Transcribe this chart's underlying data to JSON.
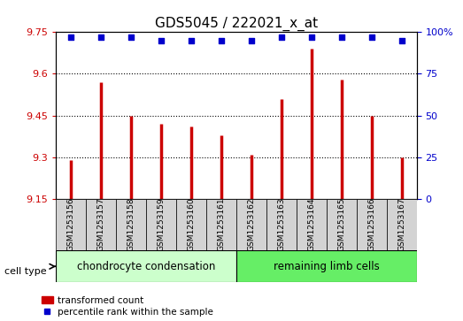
{
  "title": "GDS5045 / 222021_x_at",
  "samples": [
    "GSM1253156",
    "GSM1253157",
    "GSM1253158",
    "GSM1253159",
    "GSM1253160",
    "GSM1253161",
    "GSM1253162",
    "GSM1253163",
    "GSM1253164",
    "GSM1253165",
    "GSM1253166",
    "GSM1253167"
  ],
  "transformed_counts": [
    9.29,
    9.57,
    9.45,
    9.42,
    9.41,
    9.38,
    9.31,
    9.51,
    9.69,
    9.58,
    9.45,
    9.3
  ],
  "percentile_ranks": [
    97,
    97,
    97,
    95,
    95,
    95,
    95,
    97,
    97,
    97,
    97,
    95
  ],
  "ylim_left": [
    9.15,
    9.75
  ],
  "ylim_right": [
    0,
    100
  ],
  "yticks_left": [
    9.15,
    9.3,
    9.45,
    9.6,
    9.75
  ],
  "yticks_right": [
    0,
    25,
    50,
    75,
    100
  ],
  "ytick_labels_left": [
    "9.15",
    "9.3",
    "9.45",
    "9.6",
    "9.75"
  ],
  "ytick_labels_right": [
    "0",
    "25",
    "50",
    "75",
    "100%"
  ],
  "bar_color": "#cc0000",
  "dot_color": "#0000cc",
  "group1_label": "chondrocyte condensation",
  "group2_label": "remaining limb cells",
  "group1_color": "#ccffcc",
  "group2_color": "#66ee66",
  "group1_indices": [
    0,
    1,
    2,
    3,
    4,
    5
  ],
  "group2_indices": [
    6,
    7,
    8,
    9,
    10,
    11
  ],
  "cell_type_label": "cell type",
  "legend_bar_label": "transformed count",
  "legend_dot_label": "percentile rank within the sample",
  "gridline_color": "#000000",
  "bg_color": "#d3d3d3",
  "plot_bg_color": "#ffffff"
}
